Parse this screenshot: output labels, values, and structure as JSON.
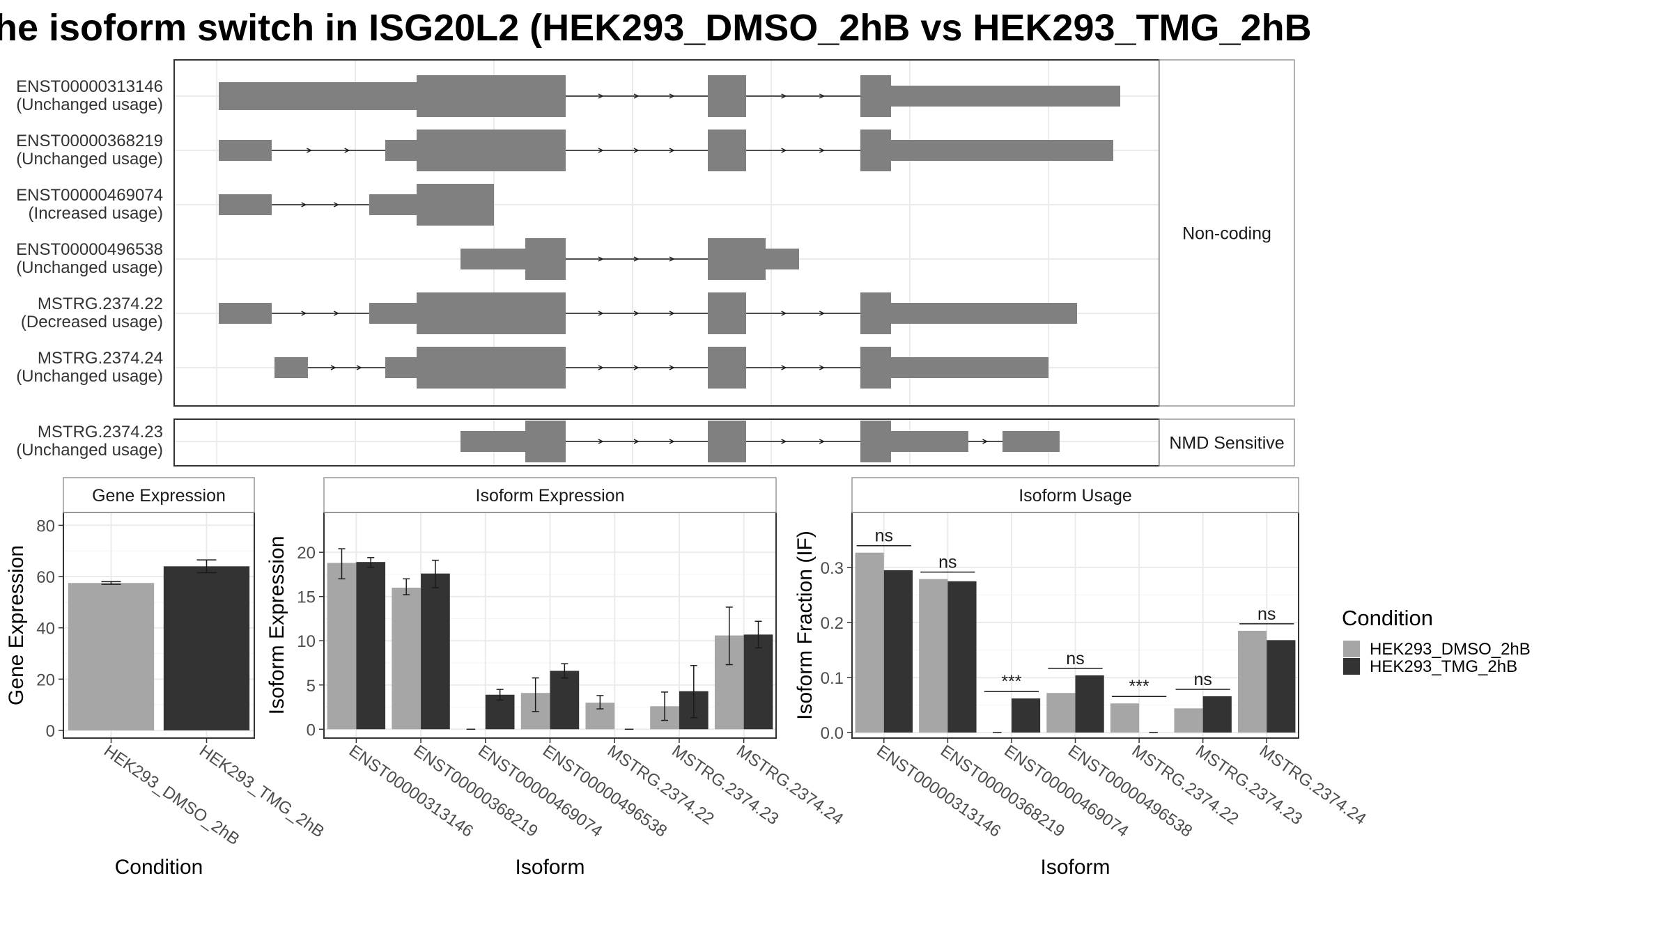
{
  "title": "he isoform switch in ISG20L2 (HEK293_DMSO_2hB vs HEK293_TMG_2hB",
  "colors": {
    "dmso": "#a6a6a6",
    "tmg": "#333333",
    "exon": "#808080",
    "grid": "#ebebeb",
    "panel_border": "#333333",
    "strip_bg": "#ffffff",
    "strip_border": "#999999"
  },
  "structure": {
    "groups": [
      {
        "label": "Non-coding",
        "transcripts": [
          {
            "id": "ENST00000313146",
            "usage": "(Unchanged usage)"
          },
          {
            "id": "ENST00000368219",
            "usage": "(Unchanged usage)"
          },
          {
            "id": "ENST00000469074",
            "usage": "(Increased usage)"
          },
          {
            "id": "ENST00000496538",
            "usage": "(Unchanged usage)"
          },
          {
            "id": "MSTRG.2374.22",
            "usage": "(Decreased usage)"
          },
          {
            "id": "MSTRG.2374.24",
            "usage": "(Unchanged usage)"
          }
        ]
      },
      {
        "label": "NMD Sensitive",
        "transcripts": [
          {
            "id": "MSTRG.2374.23",
            "usage": "(Unchanged usage)"
          }
        ]
      }
    ]
  },
  "legend": {
    "title": "Condition",
    "entries": [
      "HEK293_DMSO_2hB",
      "HEK293_TMG_2hB"
    ]
  },
  "chart_data": [
    {
      "type": "bar",
      "title": "Gene Expression",
      "xlabel": "Condition",
      "ylabel": "Gene Expression",
      "categories": [
        "HEK293_DMSO_2hB",
        "HEK293_TMG_2hB"
      ],
      "values": [
        57.5,
        64.0
      ],
      "errors": [
        [
          57.0,
          58.0
        ],
        [
          61.5,
          66.5
        ]
      ],
      "ylim": [
        -3,
        85
      ],
      "yticks": [
        0,
        20,
        40,
        60,
        80
      ],
      "grid": true
    },
    {
      "type": "bar",
      "title": "Isoform Expression",
      "xlabel": "Isoform",
      "ylabel": "Isoform Expression",
      "categories": [
        "ENST00000313146",
        "ENST00000368219",
        "ENST00000469074",
        "ENST00000496538",
        "MSTRG.2374.22",
        "MSTRG.2374.23",
        "MSTRG.2374.24"
      ],
      "series": [
        {
          "name": "HEK293_DMSO_2hB",
          "values": [
            18.8,
            16.0,
            0.0,
            4.1,
            3.0,
            2.6,
            10.6
          ],
          "errors": [
            [
              17.0,
              20.4
            ],
            [
              15.2,
              17.0
            ],
            [
              0.0,
              0.0
            ],
            [
              2.0,
              5.8
            ],
            [
              2.3,
              3.8
            ],
            [
              1.0,
              4.2
            ],
            [
              7.3,
              13.8
            ]
          ]
        },
        {
          "name": "HEK293_TMG_2hB",
          "values": [
            18.9,
            17.6,
            3.9,
            6.6,
            0.0,
            4.3,
            10.7
          ],
          "errors": [
            [
              18.3,
              19.4
            ],
            [
              16.0,
              19.1
            ],
            [
              3.3,
              4.5
            ],
            [
              5.8,
              7.4
            ],
            [
              0.0,
              0.0
            ],
            [
              1.3,
              7.2
            ],
            [
              9.2,
              12.2
            ]
          ]
        }
      ],
      "ylim": [
        -1,
        24.5
      ],
      "yticks": [
        0,
        5,
        10,
        15,
        20
      ],
      "grid": true
    },
    {
      "type": "bar",
      "title": "Isoform Usage",
      "xlabel": "Isoform",
      "ylabel": "Isoform Fraction (IF)",
      "categories": [
        "ENST00000313146",
        "ENST00000368219",
        "ENST00000469074",
        "ENST00000496538",
        "MSTRG.2374.22",
        "MSTRG.2374.23",
        "MSTRG.2374.24"
      ],
      "series": [
        {
          "name": "HEK293_DMSO_2hB",
          "values": [
            0.327,
            0.279,
            0.0,
            0.072,
            0.053,
            0.044,
            0.185
          ]
        },
        {
          "name": "HEK293_TMG_2hB",
          "values": [
            0.295,
            0.275,
            0.062,
            0.104,
            0.0,
            0.066,
            0.168
          ]
        }
      ],
      "significance": [
        "ns",
        "ns",
        "***",
        "ns",
        "***",
        "ns",
        "ns"
      ],
      "ylim": [
        -0.01,
        0.4
      ],
      "yticks": [
        0.0,
        0.1,
        0.2,
        0.3
      ],
      "grid": true
    }
  ]
}
